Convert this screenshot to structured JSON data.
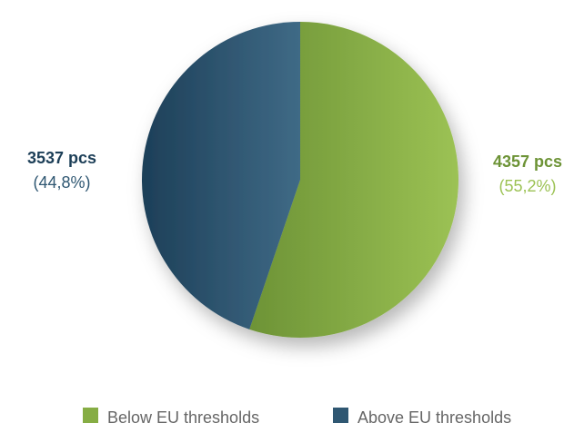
{
  "chart_data": {
    "type": "pie",
    "title": "",
    "slices": [
      {
        "name": "Below EU thresholds",
        "value": 4357,
        "value_label": "4357 pcs",
        "percent": 55.2,
        "percent_label": "(55,2%)",
        "color": "#86ad44",
        "color_light": "#9cc254",
        "color_dark": "#6d9336"
      },
      {
        "name": "Above EU thresholds",
        "value": 3537,
        "value_label": "3537 pcs",
        "percent": 44.8,
        "percent_label": "(44,8%)",
        "color": "#2f5772",
        "color_light": "#3f6a86",
        "color_dark": "#1d3f58"
      }
    ],
    "start_angle": "top, clockwise",
    "legend": {
      "placement": "bottom-center",
      "items": [
        "Below EU thresholds",
        "Above EU thresholds"
      ]
    }
  }
}
